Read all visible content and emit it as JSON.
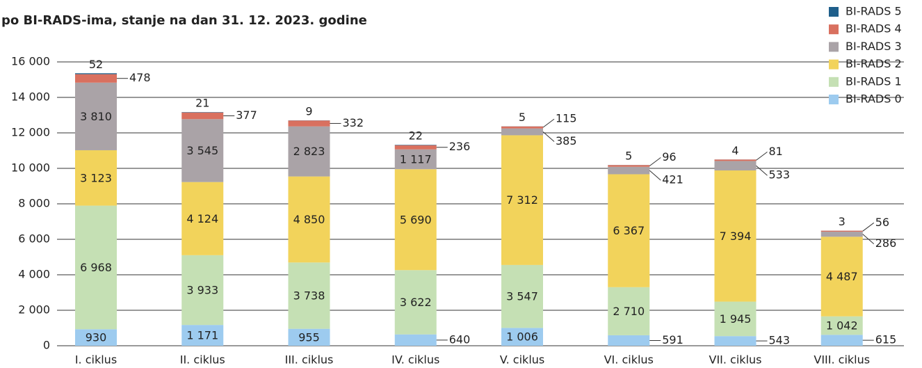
{
  "chart_data": {
    "type": "stacked_bar",
    "title": "po BI-RADS-ima, stanje na dan 31. 12. 2023. godine",
    "categories": [
      "I. ciklus",
      "II. ciklus",
      "III. ciklus",
      "IV. ciklus",
      "V. ciklus",
      "VI. ciklus",
      "VII. ciklus",
      "VIII. ciklus"
    ],
    "series": [
      {
        "name": "BI-RADS 0",
        "color": "#9dcbef",
        "values": [
          930,
          1171,
          955,
          640,
          1006,
          591,
          543,
          615
        ],
        "value_labels": [
          "930",
          "1 171",
          "955",
          "640",
          "1 006",
          "591",
          "543",
          "615"
        ]
      },
      {
        "name": "BI-RADS 1",
        "color": "#c5e0b4",
        "values": [
          6968,
          3933,
          3738,
          3622,
          3547,
          2710,
          1945,
          1042
        ],
        "value_labels": [
          "6 968",
          "3 933",
          "3 738",
          "3 622",
          "3 547",
          "2 710",
          "1 945",
          "1 042"
        ]
      },
      {
        "name": "BI-RADS 2",
        "color": "#f2d35b",
        "values": [
          3123,
          4124,
          4850,
          5690,
          7312,
          6367,
          7394,
          4487
        ],
        "value_labels": [
          "3 123",
          "4 124",
          "4 850",
          "5 690",
          "7 312",
          "6 367",
          "7 394",
          "4 487"
        ]
      },
      {
        "name": "BI-RADS 3",
        "color": "#aaa3a7",
        "values": [
          3810,
          3545,
          2823,
          1117,
          385,
          421,
          533,
          286
        ],
        "value_labels": [
          "3 810",
          "3 545",
          "2 823",
          "1 117",
          "385",
          "421",
          "533",
          "286"
        ]
      },
      {
        "name": "BI-RADS 4",
        "color": "#d9705f",
        "values": [
          478,
          377,
          332,
          236,
          115,
          96,
          81,
          56
        ],
        "value_labels": [
          "478",
          "377",
          "332",
          "236",
          "115",
          "96",
          "81",
          "56"
        ]
      },
      {
        "name": "BI-RADS 5",
        "color": "#1f5f8b",
        "values": [
          52,
          21,
          9,
          22,
          5,
          5,
          4,
          3
        ],
        "value_labels": [
          "52",
          "21",
          "9",
          "22",
          "5",
          "5",
          "4",
          "3"
        ]
      }
    ],
    "ylim": [
      0,
      16000
    ],
    "yticks": [
      0,
      {
        "value": 2000,
        "label": "2 000"
      },
      {
        "value": 4000,
        "label": "4 000"
      },
      {
        "value": 6000,
        "label": "6 000"
      },
      {
        "value": 8000,
        "label": "8 000"
      },
      {
        "value": 10000,
        "label": "10 000"
      },
      {
        "value": 12000,
        "label": "12 000"
      },
      {
        "value": 14000,
        "label": "14 000"
      },
      {
        "value": 16000,
        "label": "16 000"
      }
    ],
    "grid": true,
    "legend": "top-right"
  }
}
